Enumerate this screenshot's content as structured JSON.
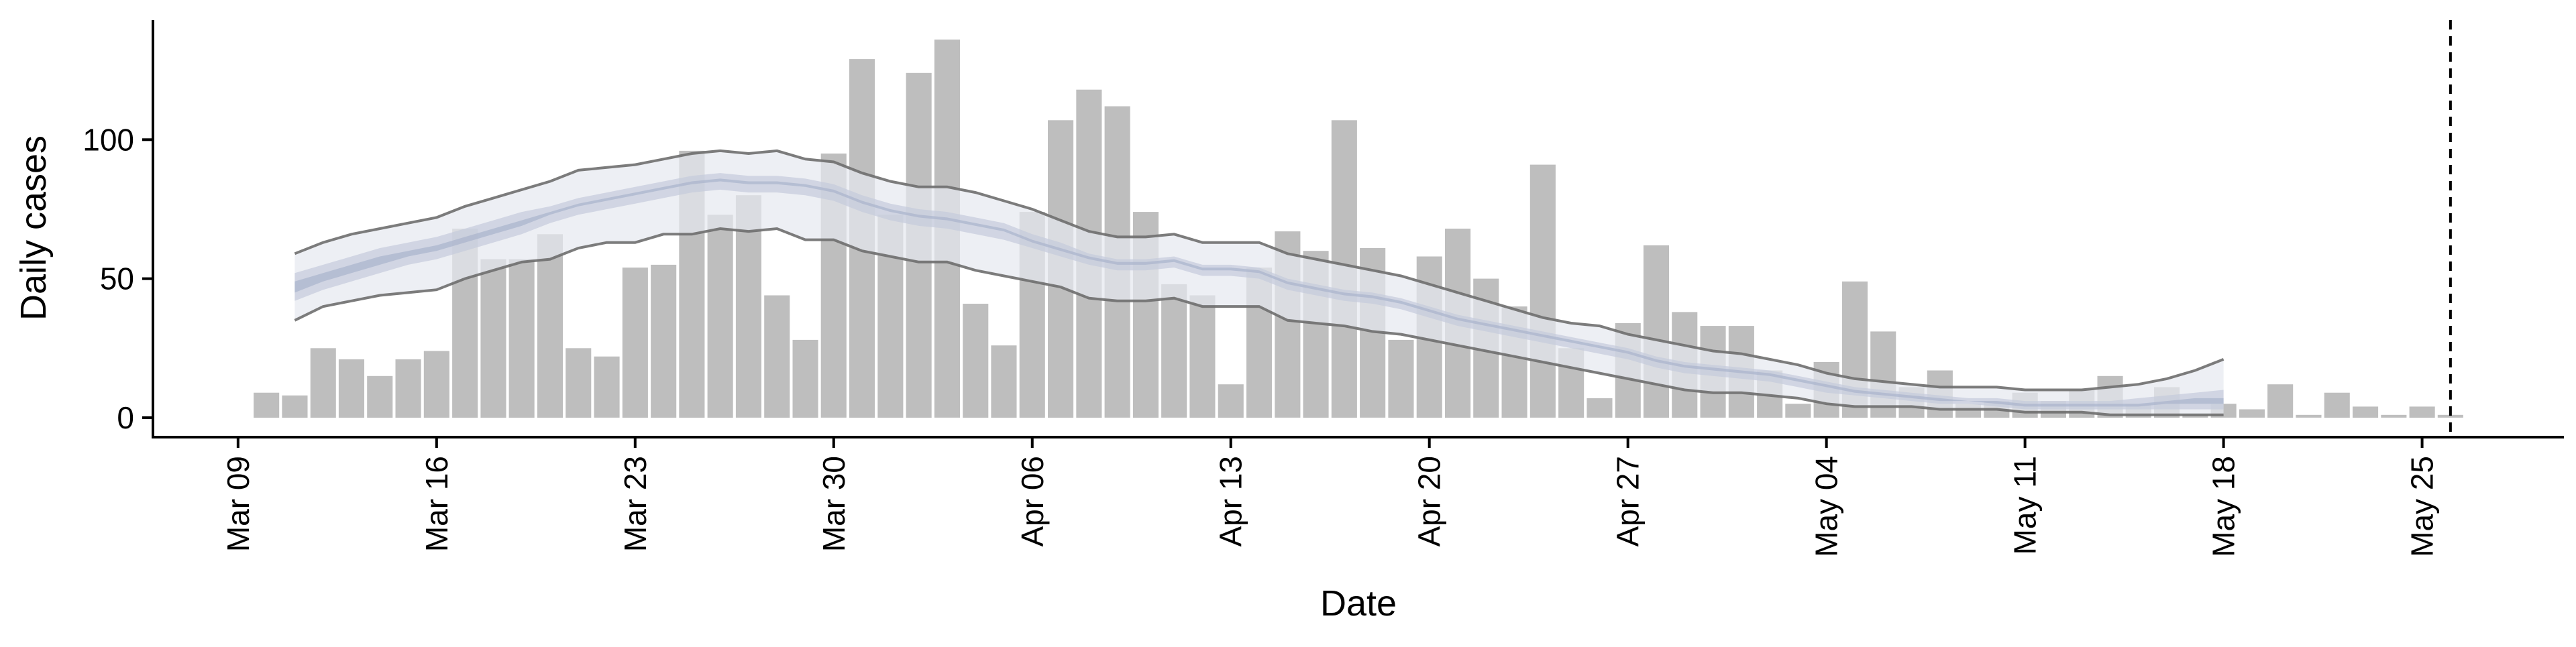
{
  "chart_data": {
    "type": "bar",
    "xlabel": "Date",
    "ylabel": "Daily cases",
    "x_start_date": "2020-03-10",
    "x_range": [
      "2020-03-06",
      "2020-05-30"
    ],
    "ylim": [
      -7,
      143
    ],
    "grid": false,
    "legend": "none",
    "xticks": [
      {
        "date": "2020-03-09",
        "label": "Mar 09"
      },
      {
        "date": "2020-03-16",
        "label": "Mar 16"
      },
      {
        "date": "2020-03-23",
        "label": "Mar 23"
      },
      {
        "date": "2020-03-30",
        "label": "Mar 30"
      },
      {
        "date": "2020-04-06",
        "label": "Apr 06"
      },
      {
        "date": "2020-04-13",
        "label": "Apr 13"
      },
      {
        "date": "2020-04-20",
        "label": "Apr 20"
      },
      {
        "date": "2020-04-27",
        "label": "Apr 27"
      },
      {
        "date": "2020-05-04",
        "label": "May 04"
      },
      {
        "date": "2020-05-11",
        "label": "May 11"
      },
      {
        "date": "2020-05-18",
        "label": "May 18"
      },
      {
        "date": "2020-05-25",
        "label": "May 25"
      }
    ],
    "yticks": [
      {
        "value": 0,
        "label": "0"
      },
      {
        "value": 50,
        "label": "50"
      },
      {
        "value": 100,
        "label": "100"
      }
    ],
    "daily_cases": [
      9,
      8,
      25,
      21,
      15,
      21,
      24,
      68,
      57,
      57,
      66,
      25,
      22,
      54,
      55,
      96,
      73,
      80,
      44,
      28,
      95,
      129,
      73,
      124,
      136,
      41,
      26,
      74,
      107,
      118,
      112,
      74,
      48,
      44,
      12,
      54,
      67,
      60,
      107,
      61,
      28,
      58,
      68,
      50,
      40,
      91,
      25,
      7,
      34,
      62,
      38,
      33,
      33,
      17,
      5,
      20,
      49,
      31,
      11,
      17,
      5,
      6,
      9,
      6,
      10,
      15,
      5,
      11,
      1,
      5,
      3,
      12,
      1,
      9,
      4,
      1,
      4,
      1
    ],
    "reference_date": "2020-05-26",
    "estimate": {
      "dates": [
        "2020-03-11",
        "2020-03-12",
        "2020-03-13",
        "2020-03-14",
        "2020-03-15",
        "2020-03-16",
        "2020-03-17",
        "2020-03-18",
        "2020-03-19",
        "2020-03-20",
        "2020-03-21",
        "2020-03-22",
        "2020-03-23",
        "2020-03-24",
        "2020-03-25",
        "2020-03-26",
        "2020-03-27",
        "2020-03-28",
        "2020-03-29",
        "2020-03-30",
        "2020-03-31",
        "2020-04-01",
        "2020-04-02",
        "2020-04-03",
        "2020-04-04",
        "2020-04-05",
        "2020-04-06",
        "2020-04-07",
        "2020-04-08",
        "2020-04-09",
        "2020-04-10",
        "2020-04-11",
        "2020-04-12",
        "2020-04-13",
        "2020-04-14",
        "2020-04-15",
        "2020-04-16",
        "2020-04-17",
        "2020-04-18",
        "2020-04-19",
        "2020-04-20",
        "2020-04-21",
        "2020-04-22",
        "2020-04-23",
        "2020-04-24",
        "2020-04-25",
        "2020-04-26",
        "2020-04-27",
        "2020-04-28",
        "2020-04-29",
        "2020-04-30",
        "2020-05-01",
        "2020-05-02",
        "2020-05-03",
        "2020-05-04",
        "2020-05-05",
        "2020-05-06",
        "2020-05-07",
        "2020-05-08",
        "2020-05-09",
        "2020-05-10",
        "2020-05-11",
        "2020-05-12",
        "2020-05-13",
        "2020-05-14",
        "2020-05-15",
        "2020-05-16",
        "2020-05-17",
        "2020-05-18"
      ],
      "lower_90": [
        35,
        40,
        42,
        44,
        45,
        46,
        50,
        53,
        56,
        57,
        61,
        63,
        63,
        66,
        66,
        68,
        67,
        68,
        64,
        64,
        60,
        58,
        56,
        56,
        53,
        51,
        49,
        47,
        43,
        42,
        42,
        43,
        40,
        40,
        40,
        35,
        34,
        33,
        31,
        30,
        28,
        26,
        24,
        22,
        20,
        18,
        16,
        14,
        12,
        10,
        9,
        9,
        8,
        7,
        5,
        4,
        4,
        4,
        3,
        3,
        3,
        2,
        2,
        2,
        1,
        1,
        1,
        1,
        1
      ],
      "upper_90": [
        59,
        63,
        66,
        68,
        70,
        72,
        76,
        79,
        82,
        85,
        89,
        90,
        91,
        93,
        95,
        96,
        95,
        96,
        93,
        92,
        88,
        85,
        83,
        83,
        81,
        78,
        75,
        71,
        67,
        65,
        65,
        66,
        63,
        63,
        63,
        59,
        57,
        55,
        53,
        51,
        48,
        45,
        42,
        39,
        36,
        34,
        33,
        30,
        28,
        26,
        24,
        23,
        21,
        19,
        16,
        14,
        13,
        12,
        11,
        11,
        11,
        10,
        10,
        10,
        11,
        12,
        14,
        17,
        21
      ],
      "lower_50": [
        42,
        46,
        49,
        52,
        55,
        57,
        60,
        63,
        66,
        70,
        73,
        75,
        77,
        79,
        81,
        82,
        81,
        81,
        80,
        78,
        74,
        71,
        69,
        68,
        66,
        64,
        61,
        58,
        55,
        53,
        53,
        54,
        51,
        51,
        50,
        46,
        44,
        42,
        41,
        39,
        36,
        33,
        31,
        29,
        27,
        25,
        23,
        21,
        18,
        16,
        15,
        14,
        13,
        11,
        9,
        8,
        7,
        6,
        5,
        5,
        4,
        3,
        3,
        3,
        3,
        3,
        3,
        3,
        3
      ],
      "upper_50": [
        52,
        55,
        58,
        61,
        63,
        65,
        68,
        71,
        74,
        76,
        79,
        81,
        83,
        85,
        87,
        88,
        87,
        87,
        86,
        84,
        80,
        77,
        75,
        74,
        72,
        70,
        66,
        63,
        59,
        57,
        57,
        58,
        55,
        55,
        54,
        50,
        48,
        46,
        45,
        43,
        40,
        37,
        35,
        33,
        31,
        29,
        27,
        25,
        22,
        20,
        19,
        18,
        17,
        15,
        13,
        11,
        10,
        9,
        8,
        7,
        7,
        6,
        6,
        6,
        6,
        7,
        8,
        9,
        10
      ],
      "lower_20": [
        45,
        49,
        52,
        55,
        58,
        60,
        63,
        66,
        69,
        73,
        76,
        78,
        80,
        82,
        84,
        85,
        84,
        84,
        83,
        81,
        77,
        74,
        72,
        71,
        69,
        67,
        63,
        60,
        57,
        55,
        55,
        56,
        53,
        53,
        52,
        48,
        46,
        44,
        43,
        41,
        38,
        35,
        33,
        31,
        29,
        27,
        25,
        23,
        20,
        18,
        17,
        16,
        15,
        13,
        11,
        9,
        8,
        7,
        6,
        6,
        5,
        4,
        4,
        4,
        4,
        4,
        5,
        5,
        5
      ],
      "upper_20": [
        49,
        52,
        55,
        58,
        60,
        62,
        65,
        68,
        71,
        74,
        77,
        79,
        81,
        83,
        85,
        86,
        85,
        85,
        84,
        82,
        78,
        75,
        73,
        72,
        70,
        68,
        64,
        61,
        58,
        56,
        56,
        57,
        54,
        54,
        53,
        49,
        47,
        45,
        44,
        42,
        39,
        36,
        34,
        32,
        30,
        28,
        26,
        24,
        21,
        19,
        18,
        17,
        16,
        14,
        12,
        10,
        9,
        8,
        7,
        6,
        6,
        5,
        5,
        5,
        5,
        5,
        6,
        7,
        7
      ],
      "colors": {
        "band_90": "#e6e8ef",
        "band_50": "#c4cadc",
        "band_20": "#a9b3cc",
        "outline": "#6e6e6e"
      }
    },
    "colors": {
      "bars": "#bebebe",
      "axis": "#000000",
      "reference_line": "#000000"
    }
  }
}
